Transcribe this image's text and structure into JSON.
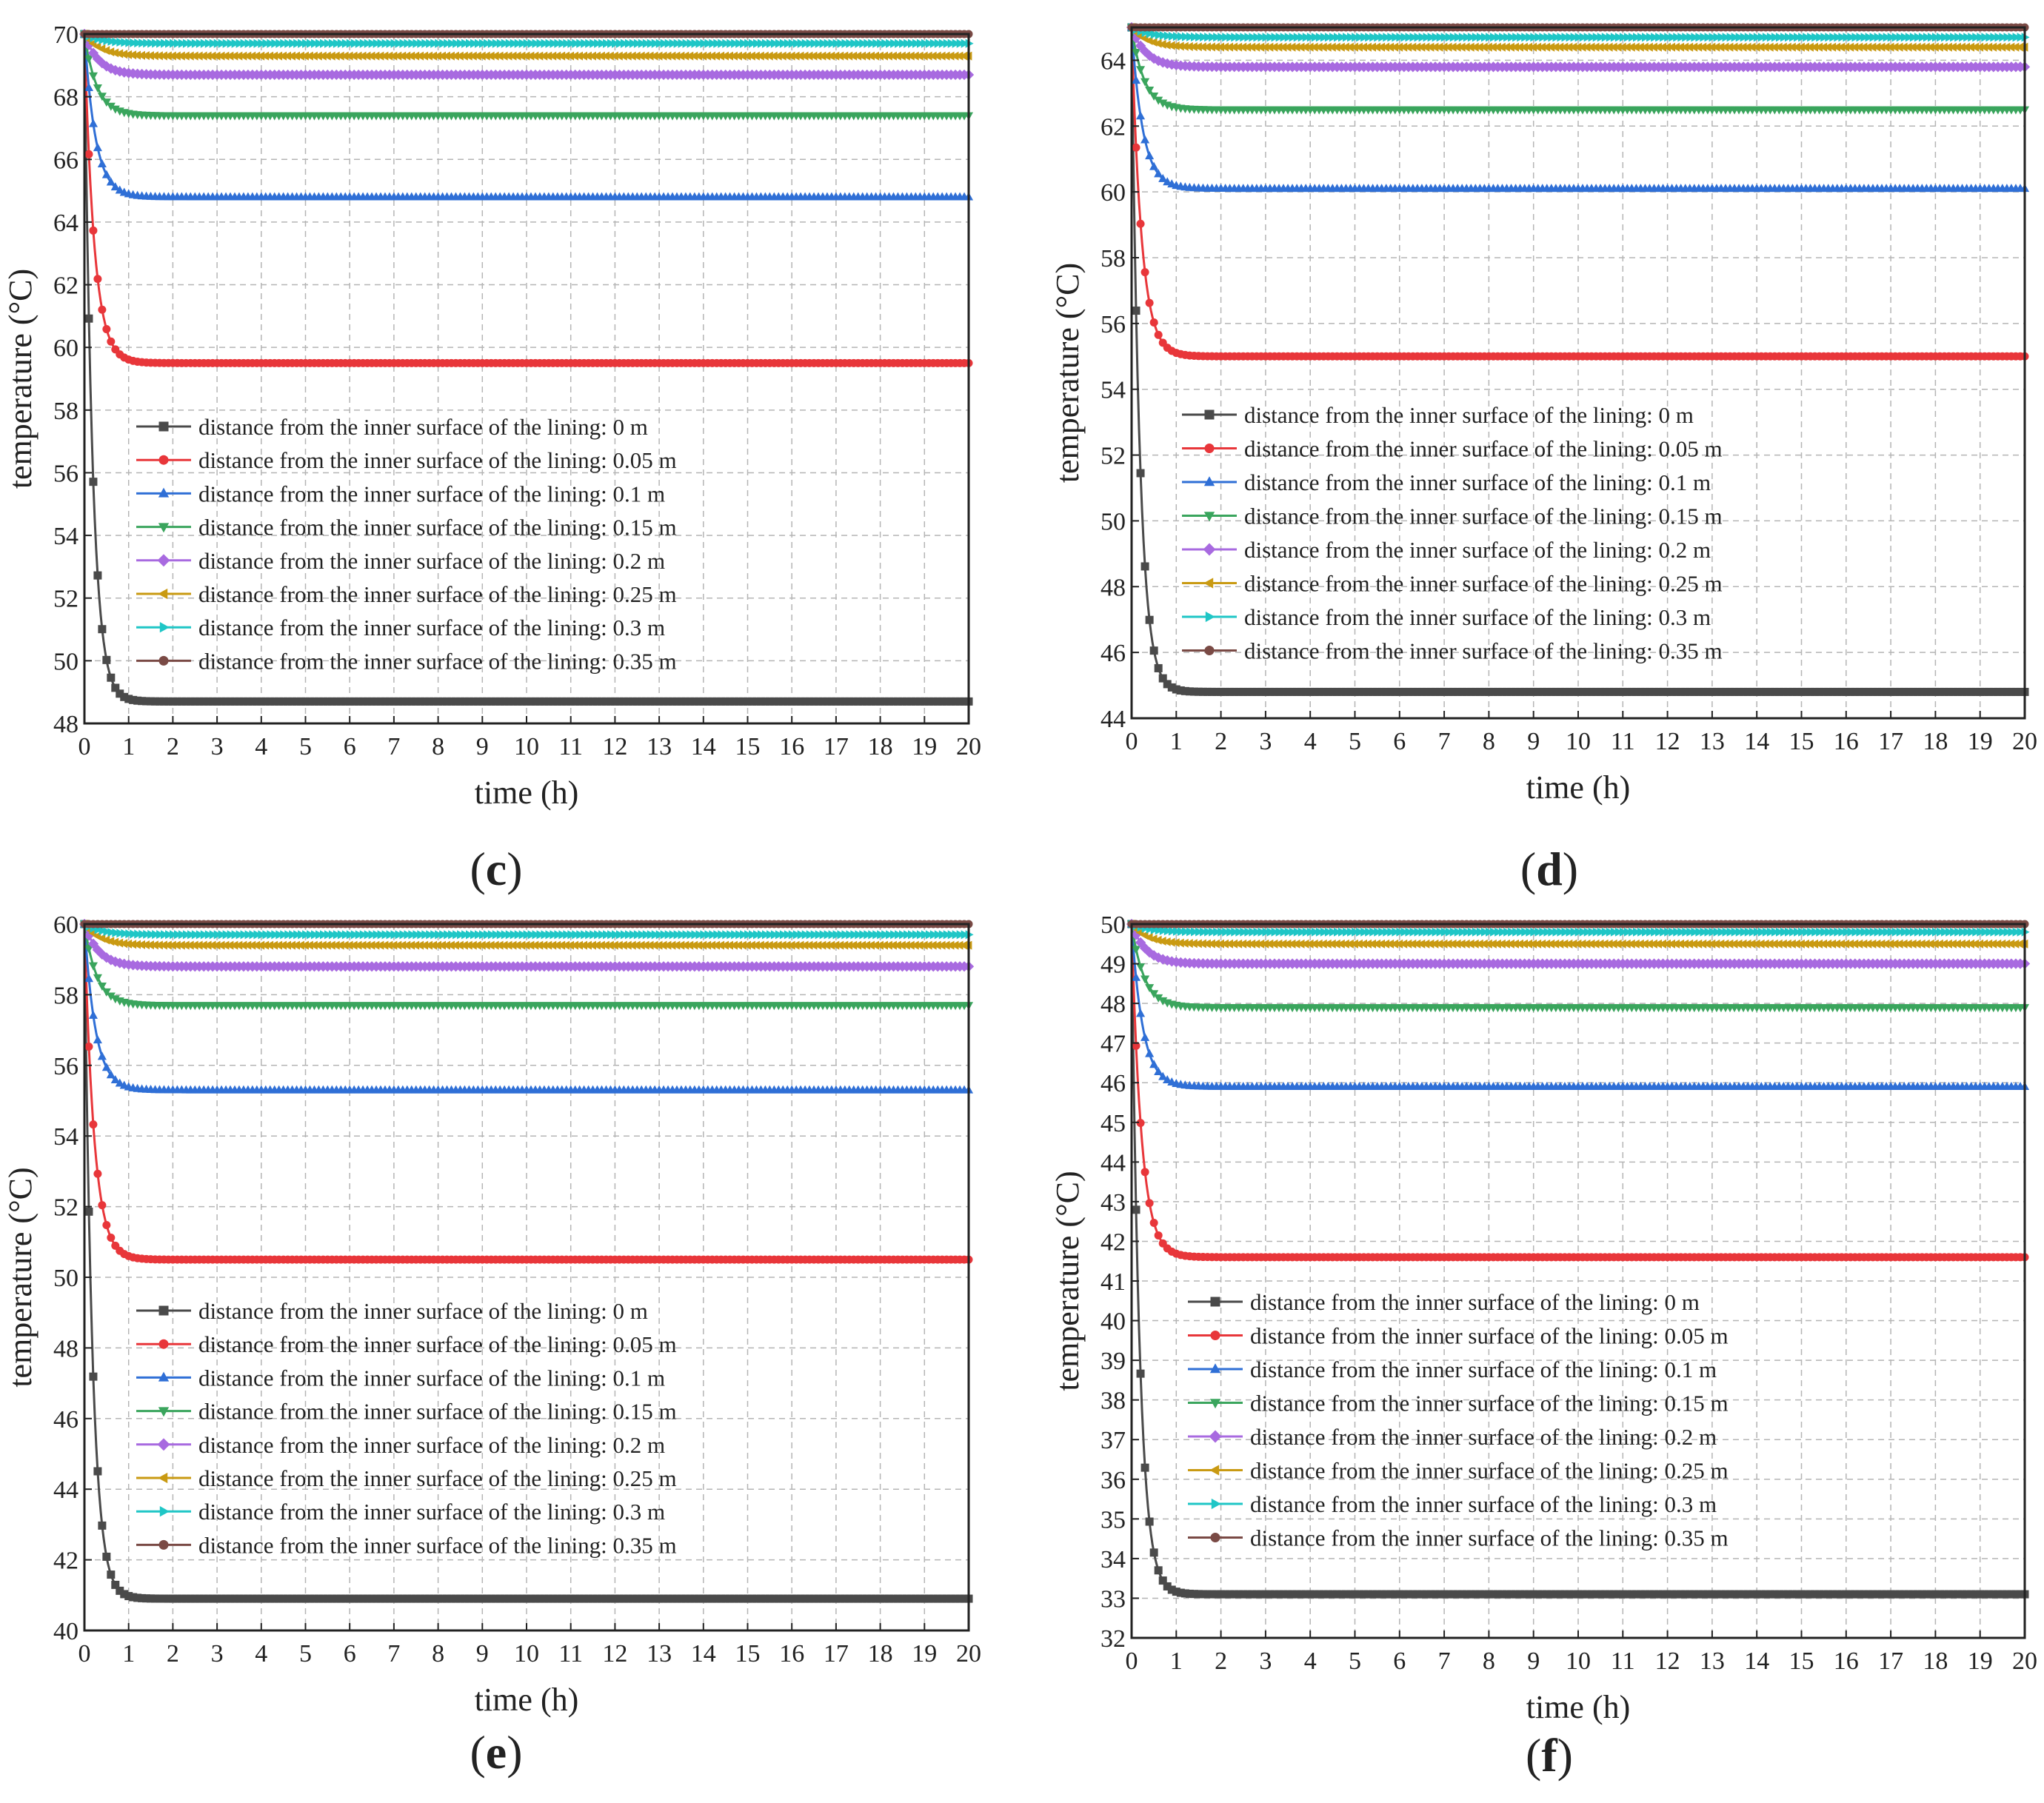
{
  "figure": {
    "x_tick_labels": [
      "0",
      "1",
      "2",
      "3",
      "4",
      "5",
      "6",
      "7",
      "8",
      "9",
      "10",
      "11",
      "12",
      "13",
      "14",
      "15",
      "16",
      "17",
      "18",
      "19",
      "20"
    ],
    "series_styles": [
      {
        "color": "#4a4a4a",
        "marker": "square"
      },
      {
        "color": "#e8363a",
        "marker": "circle"
      },
      {
        "color": "#2f6fd6",
        "marker": "triangle-up"
      },
      {
        "color": "#3aa55d",
        "marker": "triangle-down"
      },
      {
        "color": "#a86ae0",
        "marker": "diamond"
      },
      {
        "color": "#c99a12",
        "marker": "triangle-left"
      },
      {
        "color": "#1fc6c6",
        "marker": "triangle-right"
      },
      {
        "color": "#7a4a45",
        "marker": "hexagon"
      }
    ]
  },
  "chart_data": [
    {
      "type": "line",
      "panel_label": "c",
      "xlabel": "time (h)",
      "ylabel": "temperature (°C)",
      "xlim": [
        0,
        20
      ],
      "ylim": [
        48,
        70
      ],
      "yticks": [
        48,
        50,
        52,
        54,
        56,
        58,
        60,
        62,
        64,
        66,
        68,
        70
      ],
      "grid": true,
      "legend_position": "center",
      "series": [
        {
          "name": "distance from the inner surface of the lining: 0 m",
          "start": 70,
          "steady": 48.7,
          "tau": 0.18
        },
        {
          "name": "distance from the inner surface of the lining: 0.05 m",
          "start": 70,
          "steady": 59.5,
          "tau": 0.22
        },
        {
          "name": "distance from the inner surface of the lining: 0.1 m",
          "start": 70,
          "steady": 64.8,
          "tau": 0.25
        },
        {
          "name": "distance from the inner surface of the lining: 0.15 m",
          "start": 70,
          "steady": 67.4,
          "tau": 0.28
        },
        {
          "name": "distance from the inner surface of the lining: 0.2 m",
          "start": 70,
          "steady": 68.7,
          "tau": 0.32
        },
        {
          "name": "distance from the inner surface of the lining: 0.25 m",
          "start": 70,
          "steady": 69.3,
          "tau": 0.36
        },
        {
          "name": "distance from the inner surface of the lining: 0.3 m",
          "start": 70,
          "steady": 69.7,
          "tau": 0.4
        },
        {
          "name": "distance from the inner surface of the lining: 0.35 m",
          "start": 70,
          "steady": 70.0,
          "tau": 0.4
        }
      ]
    },
    {
      "type": "line",
      "panel_label": "d",
      "xlabel": "time (h)",
      "ylabel": "temperature (°C)",
      "xlim": [
        0,
        20
      ],
      "ylim": [
        44,
        65
      ],
      "yticks": [
        44,
        46,
        48,
        50,
        52,
        54,
        56,
        58,
        60,
        62,
        64
      ],
      "grid": true,
      "legend_position": "center",
      "series": [
        {
          "name": "distance from the inner surface of the lining: 0 m",
          "start": 65,
          "steady": 44.8,
          "tau": 0.18
        },
        {
          "name": "distance from the inner surface of the lining: 0.05 m",
          "start": 65,
          "steady": 55.0,
          "tau": 0.22
        },
        {
          "name": "distance from the inner surface of the lining: 0.1 m",
          "start": 65,
          "steady": 60.1,
          "tau": 0.25
        },
        {
          "name": "distance from the inner surface of the lining: 0.15 m",
          "start": 65,
          "steady": 62.5,
          "tau": 0.28
        },
        {
          "name": "distance from the inner surface of the lining: 0.2 m",
          "start": 65,
          "steady": 63.8,
          "tau": 0.32
        },
        {
          "name": "distance from the inner surface of the lining: 0.25 m",
          "start": 65,
          "steady": 64.4,
          "tau": 0.36
        },
        {
          "name": "distance from the inner surface of the lining: 0.3 m",
          "start": 65,
          "steady": 64.7,
          "tau": 0.4
        },
        {
          "name": "distance from the inner surface of the lining: 0.35 m",
          "start": 65,
          "steady": 65.0,
          "tau": 0.4
        }
      ]
    },
    {
      "type": "line",
      "panel_label": "e",
      "xlabel": "time (h)",
      "ylabel": "temperature (°C)",
      "xlim": [
        0,
        20
      ],
      "ylim": [
        40,
        60
      ],
      "yticks": [
        40,
        42,
        44,
        46,
        48,
        50,
        52,
        54,
        56,
        58,
        60
      ],
      "grid": true,
      "legend_position": "center",
      "series": [
        {
          "name": "distance from the inner surface of the lining: 0 m",
          "start": 60,
          "steady": 40.9,
          "tau": 0.18
        },
        {
          "name": "distance from the inner surface of the lining: 0.05 m",
          "start": 60,
          "steady": 50.5,
          "tau": 0.22
        },
        {
          "name": "distance from the inner surface of the lining: 0.1 m",
          "start": 60,
          "steady": 55.3,
          "tau": 0.25
        },
        {
          "name": "distance from the inner surface of the lining: 0.15 m",
          "start": 60,
          "steady": 57.7,
          "tau": 0.28
        },
        {
          "name": "distance from the inner surface of the lining: 0.2 m",
          "start": 60,
          "steady": 58.8,
          "tau": 0.32
        },
        {
          "name": "distance from the inner surface of the lining: 0.25 m",
          "start": 60,
          "steady": 59.4,
          "tau": 0.36
        },
        {
          "name": "distance from the inner surface of the lining: 0.3 m",
          "start": 60,
          "steady": 59.7,
          "tau": 0.4
        },
        {
          "name": "distance from the inner surface of the lining: 0.35 m",
          "start": 60,
          "steady": 60.0,
          "tau": 0.4
        }
      ]
    },
    {
      "type": "line",
      "panel_label": "f",
      "xlabel": "time (h)",
      "ylabel": "temperature (°C)",
      "xlim": [
        0,
        20
      ],
      "ylim": [
        32,
        50
      ],
      "yticks": [
        32,
        33,
        34,
        35,
        36,
        37,
        38,
        39,
        40,
        41,
        42,
        43,
        44,
        45,
        46,
        47,
        48,
        49,
        50
      ],
      "grid": true,
      "legend_position": "center",
      "series": [
        {
          "name": "distance from the inner surface of the lining: 0 m",
          "start": 50,
          "steady": 33.1,
          "tau": 0.18
        },
        {
          "name": "distance from the inner surface of the lining: 0.05 m",
          "start": 50,
          "steady": 41.6,
          "tau": 0.22
        },
        {
          "name": "distance from the inner surface of the lining: 0.1 m",
          "start": 50,
          "steady": 45.9,
          "tau": 0.25
        },
        {
          "name": "distance from the inner surface of the lining: 0.15 m",
          "start": 50,
          "steady": 47.9,
          "tau": 0.28
        },
        {
          "name": "distance from the inner surface of the lining: 0.2 m",
          "start": 50,
          "steady": 49.0,
          "tau": 0.32
        },
        {
          "name": "distance from the inner surface of the lining: 0.25 m",
          "start": 50,
          "steady": 49.5,
          "tau": 0.36
        },
        {
          "name": "distance from the inner surface of the lining: 0.3 m",
          "start": 50,
          "steady": 49.8,
          "tau": 0.4
        },
        {
          "name": "distance from the inner surface of the lining: 0.35 m",
          "start": 50,
          "steady": 50.0,
          "tau": 0.4
        }
      ]
    }
  ]
}
